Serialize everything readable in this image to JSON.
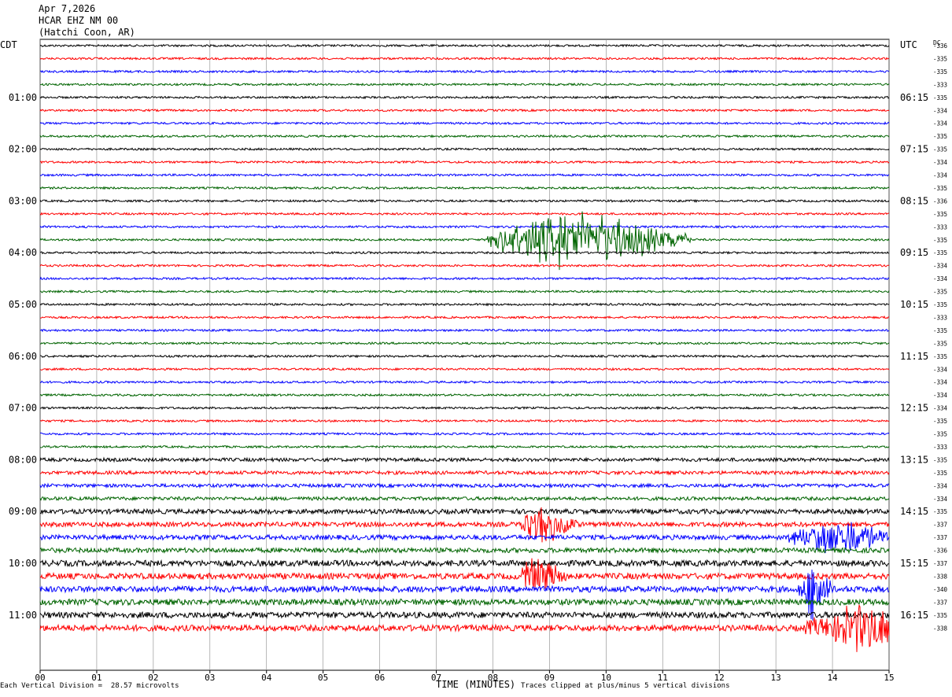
{
  "header": {
    "date": "Apr 7,2026",
    "station": "HCAR EHZ NM 00",
    "location": "(Hatchi Coon, AR)"
  },
  "tz_left": "CDT",
  "tz_right": "UTC",
  "dc_label": "DC",
  "footer": {
    "scale_prefix": "Each Vertical Division =",
    "scale_value": "28.57 microvolts",
    "xlabel": "TIME (MINUTES)",
    "clip_note": "Traces clipped at plus/minus 5 vertical divisions"
  },
  "chart_data": {
    "type": "line",
    "xlabel": "TIME (MINUTES)",
    "xlim": [
      0,
      15
    ],
    "x_ticks": [
      "00",
      "01",
      "02",
      "03",
      "04",
      "05",
      "06",
      "07",
      "08",
      "09",
      "10",
      "11",
      "12",
      "13",
      "14",
      "15"
    ],
    "trace_colors": [
      "#000000",
      "#ff0000",
      "#0000ff",
      "#006400"
    ],
    "left_hour_labels": [
      "01:00",
      "02:00",
      "03:00",
      "04:00",
      "05:00",
      "06:00",
      "07:00",
      "08:00",
      "09:00",
      "10:00",
      "11:00"
    ],
    "right_hour_labels": [
      "06:15",
      "07:15",
      "08:15",
      "09:15",
      "10:15",
      "11:15",
      "12:15",
      "13:15",
      "14:15",
      "15:15",
      "16:15"
    ],
    "dc_offsets": [
      "-336",
      "-335",
      "-335",
      "-333",
      "-335",
      "-334",
      "-334",
      "-335",
      "-335",
      "-334",
      "-334",
      "-335",
      "-336",
      "-335",
      "-333",
      "-335",
      "-335",
      "-334",
      "-334",
      "-335",
      "-335",
      "-333",
      "-335",
      "-335",
      "-335",
      "-334",
      "-334",
      "-334",
      "-334",
      "-335",
      "-335",
      "-333",
      "-335",
      "-335",
      "-334",
      "-334",
      "-335",
      "-337",
      "-337",
      "-336",
      "-337",
      "-338",
      "-340",
      "-337",
      "-335",
      "-338"
    ],
    "events": [
      {
        "trace": 15,
        "start_min": 7.9,
        "end_min": 11.5,
        "peak_min": 9.5,
        "amplitude": 45
      },
      {
        "trace": 37,
        "start_min": 8.5,
        "end_min": 9.5,
        "peak_min": 8.8,
        "amplitude": 30
      },
      {
        "trace": 38,
        "start_min": 13.2,
        "end_min": 15.0,
        "peak_min": 14.1,
        "amplitude": 30
      },
      {
        "trace": 41,
        "start_min": 8.5,
        "end_min": 9.3,
        "peak_min": 8.8,
        "amplitude": 25
      },
      {
        "trace": 42,
        "start_min": 13.4,
        "end_min": 14.0,
        "peak_min": 13.7,
        "amplitude": 50
      },
      {
        "trace": 45,
        "start_min": 13.5,
        "end_min": 15.0,
        "peak_min": 14.6,
        "amplitude": 40
      }
    ]
  }
}
